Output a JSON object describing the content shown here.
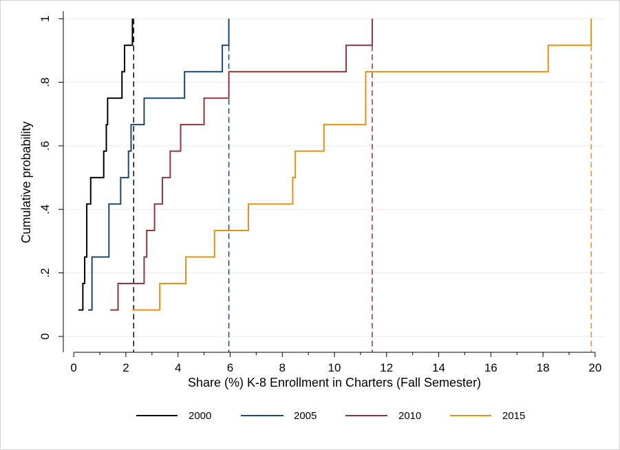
{
  "chart_data": {
    "type": "line",
    "title": "",
    "xlabel": "Share (%) K-8 Enrollment in Charters (Fall Semester)",
    "ylabel": "Cumulative probability",
    "xlim": [
      -0.4,
      20.4
    ],
    "ylim": [
      -0.05,
      1.02
    ],
    "x_ticks": [
      0,
      2,
      4,
      6,
      8,
      10,
      12,
      14,
      16,
      18,
      20
    ],
    "x_tick_labels": [
      "0",
      "2",
      "4",
      "6",
      "8",
      "10",
      "12",
      "14",
      "16",
      "18",
      "20"
    ],
    "y_ticks": [
      0,
      0.2,
      0.4,
      0.6,
      0.8,
      1
    ],
    "y_tick_labels": [
      "0",
      ".2",
      ".4",
      ".6",
      ".8",
      "1"
    ],
    "grid": true,
    "legend_position": "bottom",
    "series": [
      {
        "name": "2000",
        "color": "#000000",
        "step_x": [
          0.18,
          0.35,
          0.42,
          0.5,
          0.65,
          1.15,
          1.25,
          1.3,
          1.85,
          1.95,
          2.25
        ],
        "step_y": [
          0.0833,
          0.1667,
          0.25,
          0.4167,
          0.5,
          0.5833,
          0.6667,
          0.75,
          0.8333,
          0.9167,
          1.0
        ],
        "max_x": 2.3
      },
      {
        "name": "2005",
        "color": "#1a476f",
        "step_x": [
          0.55,
          0.7,
          1.35,
          1.8,
          2.1,
          2.2,
          2.7,
          4.25,
          5.7,
          5.95
        ],
        "step_y": [
          0.0833,
          0.25,
          0.4167,
          0.5,
          0.5833,
          0.6667,
          0.75,
          0.8333,
          0.9167,
          1.0
        ],
        "max_x": 5.95
      },
      {
        "name": "2010",
        "color": "#90353b",
        "step_x": [
          1.4,
          1.7,
          2.7,
          2.8,
          2.9,
          3.1,
          3.4,
          3.7,
          4.1,
          5.0,
          5.95,
          10.45,
          11.45
        ],
        "step_y": [
          0.0833,
          0.1667,
          0.25,
          0.3333,
          0.3333,
          0.4167,
          0.5,
          0.5833,
          0.6667,
          0.75,
          0.8333,
          0.9167,
          1.0
        ],
        "max_x": 11.45
      },
      {
        "name": "2015",
        "color": "#e8900d",
        "step_x": [
          2.25,
          3.3,
          4.3,
          5.4,
          6.7,
          8.4,
          8.5,
          9.6,
          11.2,
          18.2,
          19.85
        ],
        "step_y": [
          0.0833,
          0.1667,
          0.25,
          0.3333,
          0.4167,
          0.5,
          0.5833,
          0.6667,
          0.8333,
          0.9167,
          1.0
        ],
        "max_x": 19.85
      }
    ]
  }
}
